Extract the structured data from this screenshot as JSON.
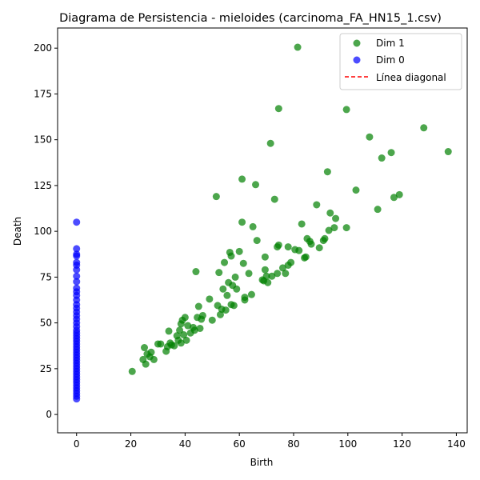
{
  "chart_data": {
    "type": "scatter",
    "title": "Diagrama de Persistencia - mieloides (carcinoma_FA_HN15_1.csv)",
    "xlabel": "Birth",
    "ylabel": "Death",
    "xlim": [
      -7,
      144
    ],
    "ylim": [
      -10,
      211
    ],
    "xticks": [
      0,
      20,
      40,
      60,
      80,
      100,
      120,
      140
    ],
    "yticks": [
      0,
      25,
      50,
      75,
      100,
      125,
      150,
      175,
      200
    ],
    "legend_position": "top-right",
    "series": [
      {
        "name": "Dim 1",
        "color": "#008000",
        "points": [
          [
            20.5,
            23.5
          ],
          [
            24.5,
            30
          ],
          [
            25,
            36.5
          ],
          [
            25.5,
            27.5
          ],
          [
            26,
            33
          ],
          [
            27,
            31.5
          ],
          [
            27.5,
            34
          ],
          [
            28.5,
            30
          ],
          [
            30,
            38.5
          ],
          [
            31,
            38.5
          ],
          [
            33,
            34.5
          ],
          [
            33.5,
            37
          ],
          [
            34,
            45.5
          ],
          [
            34.5,
            39
          ],
          [
            35,
            38
          ],
          [
            36,
            37.5
          ],
          [
            37,
            43
          ],
          [
            37.5,
            40.5
          ],
          [
            38,
            46
          ],
          [
            38.5,
            49.5
          ],
          [
            38.5,
            39
          ],
          [
            39,
            51.5
          ],
          [
            39.5,
            43.5
          ],
          [
            40,
            53
          ],
          [
            40.5,
            40.5
          ],
          [
            41,
            48.5
          ],
          [
            42,
            44.5
          ],
          [
            43,
            47.5
          ],
          [
            43.5,
            46
          ],
          [
            44,
            78
          ],
          [
            44.5,
            53
          ],
          [
            45,
            59
          ],
          [
            45.5,
            47
          ],
          [
            46,
            52
          ],
          [
            46.5,
            54
          ],
          [
            49,
            63
          ],
          [
            50,
            51.5
          ],
          [
            51.5,
            119
          ],
          [
            52,
            59.5
          ],
          [
            52.5,
            77.5
          ],
          [
            53,
            54.5
          ],
          [
            53.5,
            57.5
          ],
          [
            54,
            68.5
          ],
          [
            54.5,
            83
          ],
          [
            55,
            57
          ],
          [
            55.5,
            65
          ],
          [
            56,
            72
          ],
          [
            56.5,
            88.5
          ],
          [
            57,
            60
          ],
          [
            57,
            86.5
          ],
          [
            57.5,
            70.5
          ],
          [
            58,
            59.5
          ],
          [
            58.5,
            75
          ],
          [
            59,
            68.5
          ],
          [
            60,
            89
          ],
          [
            61,
            105
          ],
          [
            61,
            128.5
          ],
          [
            61.5,
            82.5
          ],
          [
            62,
            64
          ],
          [
            62,
            62.5
          ],
          [
            63.5,
            77
          ],
          [
            64.5,
            65.5
          ],
          [
            65,
            102.5
          ],
          [
            66,
            125.5
          ],
          [
            66.5,
            95
          ],
          [
            68.5,
            73.5
          ],
          [
            69,
            73
          ],
          [
            69.5,
            79
          ],
          [
            69.5,
            86
          ],
          [
            70,
            75.5
          ],
          [
            70.5,
            72
          ],
          [
            71.5,
            148
          ],
          [
            72,
            75.5
          ],
          [
            73,
            117.5
          ],
          [
            74,
            91.5
          ],
          [
            74,
            77
          ],
          [
            74.5,
            92.5
          ],
          [
            74.5,
            167
          ],
          [
            76,
            80
          ],
          [
            77,
            77
          ],
          [
            78,
            81.5
          ],
          [
            78,
            91.5
          ],
          [
            79,
            83
          ],
          [
            80.5,
            90
          ],
          [
            81.5,
            200.5
          ],
          [
            82,
            89.5
          ],
          [
            83,
            104
          ],
          [
            84,
            85.5
          ],
          [
            84.5,
            86
          ],
          [
            85,
            96
          ],
          [
            86,
            94.5
          ],
          [
            86.5,
            93
          ],
          [
            88.5,
            114.5
          ],
          [
            89.5,
            91
          ],
          [
            91,
            95
          ],
          [
            91.5,
            96
          ],
          [
            92.5,
            132.5
          ],
          [
            93,
            100.5
          ],
          [
            93.5,
            110
          ],
          [
            95,
            102
          ],
          [
            95.5,
            107
          ],
          [
            99.5,
            102
          ],
          [
            99.5,
            166.5
          ],
          [
            103,
            122.5
          ],
          [
            108,
            151.5
          ],
          [
            111,
            112
          ],
          [
            112.5,
            140
          ],
          [
            116,
            143
          ],
          [
            117,
            118.5
          ],
          [
            119,
            120
          ],
          [
            128,
            156.5
          ],
          [
            137,
            143.5
          ]
        ]
      },
      {
        "name": "Dim 0",
        "color": "#0000ff",
        "points": [
          [
            0,
            8.5
          ],
          [
            0,
            10
          ],
          [
            0,
            11.5
          ],
          [
            0,
            13
          ],
          [
            0,
            14.5
          ],
          [
            0,
            16
          ],
          [
            0,
            17.5
          ],
          [
            0,
            19
          ],
          [
            0,
            20.5
          ],
          [
            0,
            22
          ],
          [
            0,
            23.5
          ],
          [
            0,
            25
          ],
          [
            0,
            26.5
          ],
          [
            0,
            28
          ],
          [
            0,
            29.5
          ],
          [
            0,
            31
          ],
          [
            0,
            32.5
          ],
          [
            0,
            34
          ],
          [
            0,
            35.5
          ],
          [
            0,
            37
          ],
          [
            0,
            38.5
          ],
          [
            0,
            40
          ],
          [
            0,
            41.5
          ],
          [
            0,
            43
          ],
          [
            0,
            44.5
          ],
          [
            0,
            46
          ],
          [
            0,
            48
          ],
          [
            0,
            50
          ],
          [
            0,
            52
          ],
          [
            0,
            54
          ],
          [
            0,
            56
          ],
          [
            0,
            58
          ],
          [
            0,
            60
          ],
          [
            0,
            62.5
          ],
          [
            0,
            65
          ],
          [
            0,
            67
          ],
          [
            0,
            69
          ],
          [
            0,
            72.5
          ],
          [
            0,
            75.5
          ],
          [
            0,
            79
          ],
          [
            0,
            81.5
          ],
          [
            0,
            83
          ],
          [
            0,
            86.5
          ],
          [
            0,
            87.5
          ],
          [
            0,
            90.5
          ],
          [
            0,
            105
          ]
        ]
      },
      {
        "name": "Línea diagonal",
        "color": "#ff0000",
        "style": "dashed",
        "points": []
      }
    ]
  }
}
